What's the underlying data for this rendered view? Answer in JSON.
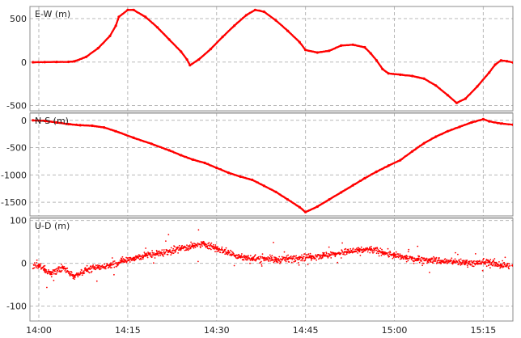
{
  "chart_data": {
    "type": "line",
    "x_ticks": [
      "14:00",
      "14:15",
      "14:30",
      "14:45",
      "15:00",
      "15:15"
    ],
    "x_tick_minutes": [
      0,
      15,
      30,
      45,
      60,
      75
    ],
    "x_range_minutes": [
      -1.5,
      80
    ],
    "series_color": "#ff0000",
    "panels": [
      {
        "name": "ew",
        "label": "E-W (m)",
        "yticks": [
          500,
          0,
          -500
        ],
        "ylim": [
          -560,
          640
        ],
        "points": [
          [
            -1,
            -2
          ],
          [
            1,
            0
          ],
          [
            3,
            2
          ],
          [
            5,
            3
          ],
          [
            6,
            8
          ],
          [
            8,
            60
          ],
          [
            10,
            160
          ],
          [
            12,
            300
          ],
          [
            13,
            420
          ],
          [
            13.5,
            520
          ],
          [
            15,
            600
          ],
          [
            16,
            600
          ],
          [
            18,
            520
          ],
          [
            20,
            400
          ],
          [
            22,
            260
          ],
          [
            24,
            120
          ],
          [
            25,
            30
          ],
          [
            25.5,
            -35
          ],
          [
            27,
            30
          ],
          [
            29,
            150
          ],
          [
            31,
            290
          ],
          [
            33,
            420
          ],
          [
            35,
            540
          ],
          [
            36.5,
            600
          ],
          [
            38,
            580
          ],
          [
            40,
            480
          ],
          [
            42,
            360
          ],
          [
            44,
            230
          ],
          [
            45,
            140
          ],
          [
            47,
            110
          ],
          [
            49,
            130
          ],
          [
            51,
            190
          ],
          [
            53,
            200
          ],
          [
            55,
            170
          ],
          [
            56,
            100
          ],
          [
            57,
            20
          ],
          [
            58,
            -80
          ],
          [
            59,
            -130
          ],
          [
            61,
            -145
          ],
          [
            63,
            -160
          ],
          [
            65,
            -190
          ],
          [
            67,
            -270
          ],
          [
            69,
            -380
          ],
          [
            70.5,
            -470
          ],
          [
            72,
            -420
          ],
          [
            74,
            -280
          ],
          [
            76,
            -120
          ],
          [
            77,
            -30
          ],
          [
            78,
            20
          ],
          [
            79,
            10
          ],
          [
            80,
            -5
          ]
        ]
      },
      {
        "name": "ns",
        "label": "N-S (m)",
        "yticks": [
          0,
          -500,
          -1000,
          -1500
        ],
        "ylim": [
          -1750,
          130
        ],
        "points": [
          [
            -1,
            0
          ],
          [
            1,
            -10
          ],
          [
            3,
            -40
          ],
          [
            5,
            -70
          ],
          [
            7,
            -90
          ],
          [
            9,
            -100
          ],
          [
            11,
            -130
          ],
          [
            13,
            -200
          ],
          [
            16,
            -320
          ],
          [
            19,
            -430
          ],
          [
            22,
            -550
          ],
          [
            24,
            -640
          ],
          [
            26,
            -720
          ],
          [
            28,
            -780
          ],
          [
            30,
            -870
          ],
          [
            32,
            -960
          ],
          [
            34,
            -1030
          ],
          [
            36,
            -1090
          ],
          [
            38,
            -1200
          ],
          [
            40,
            -1310
          ],
          [
            42,
            -1450
          ],
          [
            44,
            -1590
          ],
          [
            45,
            -1680
          ],
          [
            47,
            -1580
          ],
          [
            49,
            -1450
          ],
          [
            51,
            -1320
          ],
          [
            53,
            -1190
          ],
          [
            55,
            -1060
          ],
          [
            57,
            -940
          ],
          [
            59,
            -830
          ],
          [
            61,
            -730
          ],
          [
            63,
            -570
          ],
          [
            65,
            -420
          ],
          [
            67,
            -300
          ],
          [
            69,
            -200
          ],
          [
            71,
            -120
          ],
          [
            73,
            -40
          ],
          [
            75,
            20
          ],
          [
            76,
            -20
          ],
          [
            78,
            -60
          ],
          [
            80,
            -80
          ]
        ]
      },
      {
        "name": "ud",
        "label": "U-D (m)",
        "yticks": [
          100,
          0,
          -100
        ],
        "ylim": [
          -135,
          105
        ],
        "points": [
          [
            0,
            -5
          ],
          [
            1,
            -15
          ],
          [
            2,
            -25
          ],
          [
            4,
            -10
          ],
          [
            6,
            -30
          ],
          [
            8,
            -15
          ],
          [
            10,
            -10
          ],
          [
            12,
            -5
          ],
          [
            14,
            5
          ],
          [
            16,
            12
          ],
          [
            18,
            18
          ],
          [
            20,
            22
          ],
          [
            22,
            28
          ],
          [
            24,
            35
          ],
          [
            26,
            40
          ],
          [
            28,
            45
          ],
          [
            30,
            35
          ],
          [
            32,
            25
          ],
          [
            34,
            15
          ],
          [
            36,
            10
          ],
          [
            38,
            12
          ],
          [
            40,
            8
          ],
          [
            42,
            10
          ],
          [
            44,
            14
          ],
          [
            46,
            16
          ],
          [
            48,
            18
          ],
          [
            50,
            22
          ],
          [
            52,
            26
          ],
          [
            54,
            30
          ],
          [
            56,
            32
          ],
          [
            58,
            26
          ],
          [
            60,
            18
          ],
          [
            62,
            12
          ],
          [
            64,
            10
          ],
          [
            66,
            8
          ],
          [
            68,
            5
          ],
          [
            70,
            3
          ],
          [
            72,
            2
          ],
          [
            74,
            0
          ],
          [
            76,
            3
          ],
          [
            78,
            -5
          ],
          [
            80,
            -5
          ]
        ]
      }
    ]
  }
}
